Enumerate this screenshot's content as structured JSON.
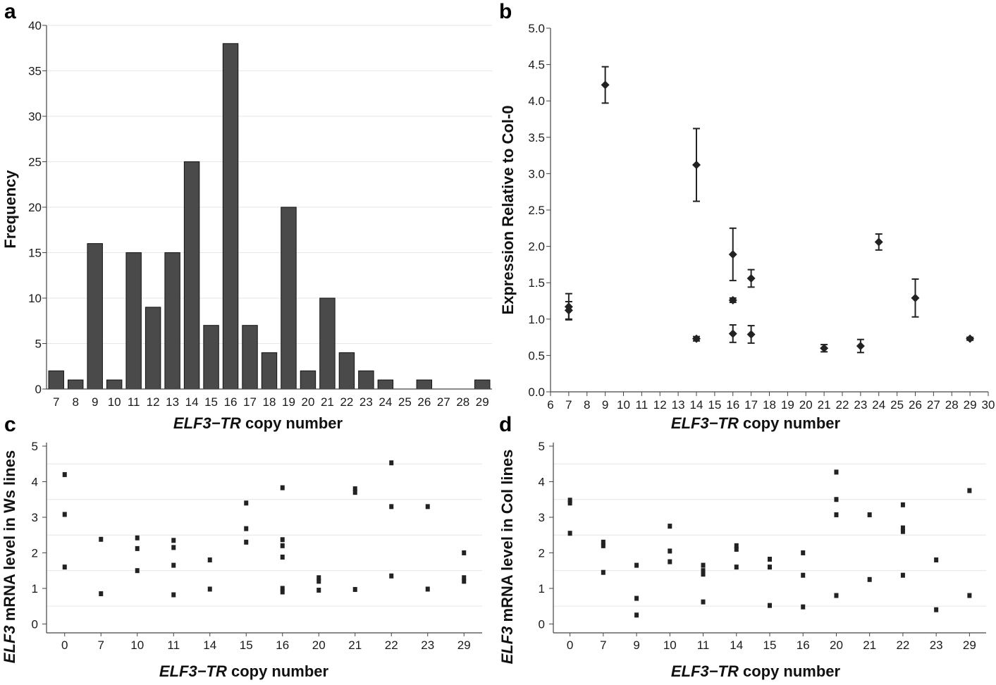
{
  "figure": {
    "colors": {
      "bar": "#4a4a4a",
      "marker": "#222222",
      "axis": "#444444",
      "grid": "#e6e6e6"
    }
  },
  "chart_data": [
    {
      "panel": "a",
      "type": "bar",
      "categories": [
        "7",
        "8",
        "9",
        "10",
        "11",
        "12",
        "13",
        "14",
        "15",
        "16",
        "17",
        "18",
        "19",
        "20",
        "21",
        "22",
        "23",
        "24",
        "25",
        "26",
        "27",
        "28",
        "29"
      ],
      "values": [
        2,
        1,
        16,
        1,
        15,
        9,
        15,
        25,
        7,
        38,
        7,
        4,
        20,
        2,
        10,
        4,
        2,
        1,
        0,
        1,
        0,
        0,
        1
      ],
      "xlabel_italic": "ELF3−TR",
      "xlabel_rest": " copy number",
      "ylabel": "Frequency",
      "ylim": [
        0,
        40
      ],
      "yticks": [
        "0",
        "5",
        "10",
        "15",
        "20",
        "25",
        "30",
        "35",
        "40"
      ]
    },
    {
      "panel": "b",
      "type": "scatter",
      "points": [
        {
          "x": 7,
          "y": 1.17,
          "err": 0.18
        },
        {
          "x": 7,
          "y": 1.12,
          "err": 0.12
        },
        {
          "x": 9,
          "y": 4.22,
          "err": 0.25
        },
        {
          "x": 14,
          "y": 3.12,
          "err": 0.5
        },
        {
          "x": 14,
          "y": 0.73,
          "err": 0.03
        },
        {
          "x": 16,
          "y": 1.89,
          "err": 0.36
        },
        {
          "x": 16,
          "y": 1.26,
          "err": 0.03
        },
        {
          "x": 16,
          "y": 0.8,
          "err": 0.12
        },
        {
          "x": 17,
          "y": 1.56,
          "err": 0.12
        },
        {
          "x": 17,
          "y": 0.79,
          "err": 0.12
        },
        {
          "x": 21,
          "y": 0.6,
          "err": 0.05
        },
        {
          "x": 23,
          "y": 0.63,
          "err": 0.09
        },
        {
          "x": 24,
          "y": 2.06,
          "err": 0.11
        },
        {
          "x": 26,
          "y": 1.29,
          "err": 0.26
        },
        {
          "x": 29,
          "y": 0.73,
          "err": 0.02
        }
      ],
      "xlabel_italic": "ELF3−TR",
      "xlabel_rest": " copy number",
      "ylabel": "Expression Relative to Col-0",
      "xlim": [
        6,
        30
      ],
      "ylim": [
        0,
        5
      ],
      "xticks": [
        "6",
        "7",
        "8",
        "9",
        "10",
        "11",
        "12",
        "13",
        "14",
        "15",
        "16",
        "17",
        "18",
        "19",
        "20",
        "21",
        "22",
        "23",
        "24",
        "25",
        "26",
        "27",
        "28",
        "29",
        "30"
      ],
      "yticks": [
        "0.0",
        "0.5",
        "1.0",
        "1.5",
        "2.0",
        "2.5",
        "3.0",
        "3.5",
        "4.0",
        "4.5",
        "5.0"
      ]
    },
    {
      "panel": "c",
      "type": "scatter",
      "categories": [
        "0",
        "7",
        "10",
        "11",
        "14",
        "15",
        "16",
        "20",
        "21",
        "22",
        "23",
        "29"
      ],
      "points": [
        {
          "cat": "0",
          "y": 4.2
        },
        {
          "cat": "0",
          "y": 3.08
        },
        {
          "cat": "0",
          "y": 1.6
        },
        {
          "cat": "7",
          "y": 2.38
        },
        {
          "cat": "7",
          "y": 0.85
        },
        {
          "cat": "10",
          "y": 2.42
        },
        {
          "cat": "10",
          "y": 2.12
        },
        {
          "cat": "10",
          "y": 1.5
        },
        {
          "cat": "11",
          "y": 2.35
        },
        {
          "cat": "11",
          "y": 2.15
        },
        {
          "cat": "11",
          "y": 1.65
        },
        {
          "cat": "11",
          "y": 0.82
        },
        {
          "cat": "14",
          "y": 1.8
        },
        {
          "cat": "14",
          "y": 0.98
        },
        {
          "cat": "15",
          "y": 3.4
        },
        {
          "cat": "15",
          "y": 2.68
        },
        {
          "cat": "15",
          "y": 2.3
        },
        {
          "cat": "16",
          "y": 3.83
        },
        {
          "cat": "16",
          "y": 2.37
        },
        {
          "cat": "16",
          "y": 2.2
        },
        {
          "cat": "16",
          "y": 1.88
        },
        {
          "cat": "16",
          "y": 1.0
        },
        {
          "cat": "16",
          "y": 0.9
        },
        {
          "cat": "20",
          "y": 1.3
        },
        {
          "cat": "20",
          "y": 1.2
        },
        {
          "cat": "20",
          "y": 0.95
        },
        {
          "cat": "21",
          "y": 3.8
        },
        {
          "cat": "21",
          "y": 3.7
        },
        {
          "cat": "21",
          "y": 0.97
        },
        {
          "cat": "22",
          "y": 4.53
        },
        {
          "cat": "22",
          "y": 3.3
        },
        {
          "cat": "22",
          "y": 1.35
        },
        {
          "cat": "23",
          "y": 3.3
        },
        {
          "cat": "23",
          "y": 0.98
        },
        {
          "cat": "29",
          "y": 2.0
        },
        {
          "cat": "29",
          "y": 1.3
        },
        {
          "cat": "29",
          "y": 1.2
        }
      ],
      "xlabel_italic": "ELF3−TR",
      "xlabel_rest": " copy number",
      "ylabel_italic": "ELF3",
      "ylabel_rest": " mRNA level in Ws lines",
      "ylim": [
        -0.25,
        5.1
      ],
      "yticks": [
        "0",
        "1",
        "2",
        "3",
        "4",
        "5"
      ]
    },
    {
      "panel": "d",
      "type": "scatter",
      "categories": [
        "0",
        "7",
        "9",
        "10",
        "11",
        "14",
        "15",
        "16",
        "20",
        "21",
        "22",
        "23",
        "29"
      ],
      "points": [
        {
          "cat": "0",
          "y": 3.48
        },
        {
          "cat": "0",
          "y": 3.4
        },
        {
          "cat": "0",
          "y": 2.55
        },
        {
          "cat": "7",
          "y": 2.3
        },
        {
          "cat": "7",
          "y": 2.2
        },
        {
          "cat": "7",
          "y": 1.45
        },
        {
          "cat": "9",
          "y": 1.65
        },
        {
          "cat": "9",
          "y": 0.72
        },
        {
          "cat": "9",
          "y": 0.25
        },
        {
          "cat": "10",
          "y": 2.75
        },
        {
          "cat": "10",
          "y": 2.05
        },
        {
          "cat": "10",
          "y": 1.75
        },
        {
          "cat": "11",
          "y": 1.65
        },
        {
          "cat": "11",
          "y": 1.5
        },
        {
          "cat": "11",
          "y": 1.4
        },
        {
          "cat": "11",
          "y": 0.62
        },
        {
          "cat": "14",
          "y": 2.2
        },
        {
          "cat": "14",
          "y": 2.1
        },
        {
          "cat": "14",
          "y": 1.6
        },
        {
          "cat": "15",
          "y": 1.82
        },
        {
          "cat": "15",
          "y": 1.6
        },
        {
          "cat": "15",
          "y": 0.52
        },
        {
          "cat": "16",
          "y": 2.0
        },
        {
          "cat": "16",
          "y": 1.37
        },
        {
          "cat": "16",
          "y": 0.48
        },
        {
          "cat": "20",
          "y": 4.27
        },
        {
          "cat": "20",
          "y": 3.5
        },
        {
          "cat": "20",
          "y": 3.07
        },
        {
          "cat": "20",
          "y": 0.8
        },
        {
          "cat": "21",
          "y": 3.07
        },
        {
          "cat": "21",
          "y": 1.25
        },
        {
          "cat": "22",
          "y": 3.35
        },
        {
          "cat": "22",
          "y": 2.7
        },
        {
          "cat": "22",
          "y": 2.6
        },
        {
          "cat": "22",
          "y": 1.37
        },
        {
          "cat": "23",
          "y": 1.8
        },
        {
          "cat": "23",
          "y": 0.4
        },
        {
          "cat": "29",
          "y": 3.75
        },
        {
          "cat": "29",
          "y": 0.8
        }
      ],
      "xlabel_italic": "ELF3−TR",
      "xlabel_rest": " copy number",
      "ylabel_italic": "ELF3",
      "ylabel_rest": " mRNA level in Col lines",
      "ylim": [
        -0.25,
        5.1
      ],
      "yticks": [
        "0",
        "1",
        "2",
        "3",
        "4",
        "5"
      ]
    }
  ]
}
